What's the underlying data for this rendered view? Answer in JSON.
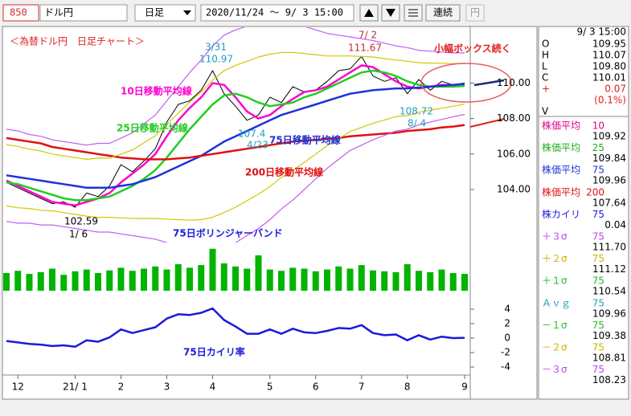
{
  "toolbar": {
    "code": "850",
    "symbol": "ドル円",
    "period": "日足",
    "range": "2020/11/24 ～  9/ 3 15:00",
    "continuous": "連続",
    "unit": "円"
  },
  "chart_data": [
    {
      "type": "line",
      "categories": [
        null,
        "12",
        null,
        null,
        null,
        null,
        "21/ 1",
        null,
        null,
        null,
        "2",
        null,
        null,
        null,
        "3",
        null,
        null,
        null,
        "4",
        null,
        null,
        null,
        null,
        "5",
        null,
        null,
        null,
        "6",
        null,
        null,
        null,
        "7",
        null,
        null,
        null,
        "8",
        null,
        null,
        null,
        null,
        "9"
      ],
      "ylim": [
        101.1,
        113.1
      ],
      "yticks": [
        {
          "value": 110,
          "label": "110.00"
        },
        {
          "value": 108,
          "label": "108.00"
        },
        {
          "value": 106,
          "label": "106.00"
        },
        {
          "value": 104,
          "label": "104.00"
        }
      ],
      "series": [
        {
          "color": "#000000",
          "values": [
            104.4,
            104.1,
            103.8,
            103.5,
            103.2,
            103.3,
            103.0,
            103.8,
            103.6,
            104.2,
            105.4,
            105.0,
            105.6,
            106.3,
            107.8,
            108.8,
            109.0,
            109.6,
            110.7,
            109.4,
            108.7,
            107.9,
            108.2,
            109.2,
            108.9,
            109.8,
            109.5,
            109.6,
            110.1,
            110.7,
            110.8,
            111.5,
            110.4,
            110.1,
            110.3,
            109.4,
            110.2,
            109.6,
            110.1,
            109.9,
            110.01
          ]
        },
        {
          "name": "10日移動平均線",
          "color": "#ff00d0",
          "values": [
            104.5,
            104.2,
            103.9,
            103.6,
            103.3,
            103.2,
            103.1,
            103.3,
            103.5,
            103.8,
            104.4,
            104.9,
            105.4,
            106.0,
            107.0,
            107.9,
            108.6,
            109.2,
            110.0,
            109.9,
            109.2,
            108.4,
            108.0,
            108.2,
            108.7,
            109.1,
            109.5,
            109.6,
            109.8,
            110.2,
            110.6,
            111.0,
            110.9,
            110.5,
            110.1,
            109.8,
            109.7,
            109.8,
            109.9,
            109.9,
            109.92
          ]
        },
        {
          "name": "25日移動平均線",
          "color": "#22cc22",
          "values": [
            104.4,
            104.3,
            104.1,
            103.9,
            103.7,
            103.5,
            103.4,
            103.4,
            103.5,
            103.6,
            103.9,
            104.2,
            104.6,
            105.1,
            105.8,
            106.6,
            107.4,
            108.1,
            108.8,
            109.3,
            109.4,
            109.2,
            108.9,
            108.7,
            108.8,
            108.9,
            109.2,
            109.4,
            109.7,
            110.0,
            110.3,
            110.6,
            110.7,
            110.6,
            110.4,
            110.1,
            109.9,
            109.8,
            109.8,
            109.8,
            109.84
          ]
        },
        {
          "name": "75日移動平均線",
          "color": "#1e32d8",
          "values": [
            104.8,
            104.7,
            104.6,
            104.5,
            104.4,
            104.3,
            104.2,
            104.1,
            104.1,
            104.1,
            104.2,
            104.3,
            104.5,
            104.7,
            105.0,
            105.3,
            105.6,
            105.9,
            106.3,
            106.7,
            107.0,
            107.3,
            107.6,
            107.9,
            108.2,
            108.4,
            108.6,
            108.8,
            109.0,
            109.2,
            109.4,
            109.5,
            109.6,
            109.65,
            109.7,
            109.7,
            109.75,
            109.8,
            109.85,
            109.9,
            109.96
          ]
        },
        {
          "name": "200日移動平均線",
          "color": "#e01010",
          "values": [
            106.9,
            106.8,
            106.7,
            106.6,
            106.4,
            106.3,
            106.2,
            106.1,
            106.0,
            105.9,
            105.8,
            105.75,
            105.7,
            105.7,
            105.7,
            105.75,
            105.8,
            105.9,
            106.0,
            106.1,
            106.2,
            106.3,
            106.4,
            106.5,
            106.6,
            106.7,
            106.75,
            106.8,
            106.85,
            106.9,
            107.0,
            107.05,
            107.1,
            107.15,
            107.2,
            107.3,
            107.35,
            107.4,
            107.5,
            107.55,
            107.64
          ]
        },
        {
          "color": "#c060f0",
          "values": [
            107.4,
            107.3,
            107.1,
            107.0,
            106.8,
            106.7,
            106.6,
            106.5,
            106.6,
            106.6,
            106.9,
            107.2,
            107.7,
            108.2,
            109.0,
            109.8,
            110.6,
            111.3,
            112.1,
            112.7,
            113.0,
            113.2,
            113.4,
            113.5,
            113.5,
            113.4,
            113.2,
            113.0,
            112.8,
            112.7,
            112.6,
            112.5,
            112.4,
            112.25,
            112.1,
            112.0,
            111.85,
            111.8,
            111.75,
            111.7,
            111.7
          ]
        },
        {
          "color": "#d0c800",
          "values": [
            106.53,
            106.43,
            106.27,
            106.17,
            106.0,
            105.9,
            105.8,
            105.7,
            105.77,
            105.77,
            106.0,
            106.23,
            106.63,
            107.03,
            107.67,
            108.3,
            108.93,
            109.5,
            110.17,
            110.7,
            111.0,
            111.23,
            111.47,
            111.63,
            111.73,
            111.73,
            111.67,
            111.6,
            111.53,
            111.53,
            111.53,
            111.5,
            111.47,
            111.38,
            111.3,
            111.23,
            111.15,
            111.13,
            111.12,
            111.1,
            111.12
          ]
        },
        {
          "color": "#d0c800",
          "values": [
            103.07,
            102.97,
            102.93,
            102.83,
            102.8,
            102.7,
            102.6,
            102.5,
            102.43,
            102.43,
            102.4,
            102.37,
            102.37,
            102.37,
            102.33,
            102.3,
            102.27,
            102.3,
            102.43,
            102.7,
            103.0,
            103.37,
            103.73,
            104.17,
            104.67,
            105.07,
            105.53,
            106.0,
            106.47,
            106.87,
            107.27,
            107.5,
            107.73,
            107.92,
            108.1,
            108.17,
            108.35,
            108.47,
            108.58,
            108.7,
            108.81
          ]
        },
        {
          "color": "#c060f0",
          "values": [
            102.2,
            102.1,
            102.1,
            102.0,
            102.0,
            101.9,
            101.8,
            101.7,
            101.6,
            101.6,
            101.5,
            101.4,
            101.3,
            101.2,
            101.0,
            100.8,
            100.6,
            100.5,
            100.5,
            100.7,
            101.0,
            101.4,
            101.8,
            102.3,
            102.9,
            103.4,
            104.0,
            104.6,
            105.2,
            105.7,
            106.2,
            106.5,
            106.8,
            107.05,
            107.3,
            107.4,
            107.65,
            107.8,
            107.95,
            108.1,
            108.23
          ]
        }
      ],
      "annotations": [
        "＜為替ドル円　日足チャート＞",
        "小幅ボックス続く",
        "75日ボリンジャーバンド",
        "3/31",
        "110.97",
        "7/ 2",
        "111.67",
        "102.59",
        "1/ 6",
        "108.72",
        "8/ 4",
        "107.4",
        "4/23"
      ]
    },
    {
      "type": "bar",
      "color": "#00b400",
      "ylim": [
        0,
        100
      ],
      "values": [
        40,
        45,
        38,
        42,
        50,
        36,
        44,
        48,
        40,
        46,
        52,
        45,
        50,
        55,
        48,
        60,
        52,
        58,
        95,
        62,
        55,
        50,
        80,
        48,
        45,
        52,
        50,
        44,
        48,
        55,
        50,
        58,
        46,
        44,
        42,
        60,
        45,
        42,
        48,
        40,
        38
      ]
    },
    {
      "type": "line",
      "color": "#1a1adc",
      "ylim": [
        -5,
        5
      ],
      "yticks": [
        4,
        2,
        0,
        -2,
        -4
      ],
      "values": [
        -0.4,
        -0.6,
        -0.8,
        -0.9,
        -1.1,
        -1.0,
        -1.2,
        -0.3,
        -0.5,
        0.1,
        1.2,
        0.7,
        1.1,
        1.5,
        2.7,
        3.3,
        3.2,
        3.5,
        4.1,
        2.5,
        1.6,
        0.6,
        0.6,
        1.2,
        0.6,
        1.3,
        0.8,
        0.7,
        1.0,
        1.4,
        1.3,
        1.8,
        0.7,
        0.4,
        0.5,
        -0.3,
        0.4,
        -0.2,
        0.2,
        0.0,
        0.04
      ],
      "annotations": [
        "75日カイリ率"
      ]
    }
  ],
  "info_panel": {
    "datetime": " 9/ 3 15:00",
    "ohlc": [
      {
        "label": "O",
        "value": "109.95"
      },
      {
        "label": "H",
        "value": "110.07"
      },
      {
        "label": "L",
        "value": "109.80"
      },
      {
        "label": "C",
        "value": "110.01"
      }
    ],
    "change_sign": "+",
    "change": "0.07",
    "change_pct": "(0.1%)",
    "volume_label": "V",
    "indicators": [
      {
        "name": "株価平均",
        "period": "10",
        "value": "109.92",
        "color": "#e0008a"
      },
      {
        "name": "株価平均",
        "period": "25",
        "value": "109.84",
        "color": "#22aa22"
      },
      {
        "name": "株価平均",
        "period": "75",
        "value": "109.96",
        "color": "#1e32d8"
      },
      {
        "name": "株価平均",
        "period": "200",
        "value": "107.64",
        "color": "#e01010"
      },
      {
        "name": "株カイリ",
        "period": "75",
        "value": "0.04",
        "color": "#1a1adc"
      },
      {
        "name": "＋３σ",
        "period": "75",
        "value": "111.70",
        "color": "#c040f0"
      },
      {
        "name": "＋２σ",
        "period": "75",
        "value": "111.12",
        "color": "#c8b400"
      },
      {
        "name": "＋１σ",
        "period": "75",
        "value": "110.54",
        "color": "#22bb22"
      },
      {
        "name": "Ａｖｇ",
        "period": "75",
        "value": "109.96",
        "color": "#20a0c0"
      },
      {
        "name": "－１σ",
        "period": "75",
        "value": "109.38",
        "color": "#22bb22"
      },
      {
        "name": "－２σ",
        "period": "75",
        "value": "108.81",
        "color": "#c8b400"
      },
      {
        "name": "－３σ",
        "period": "75",
        "value": "108.23",
        "color": "#c040f0"
      }
    ]
  }
}
